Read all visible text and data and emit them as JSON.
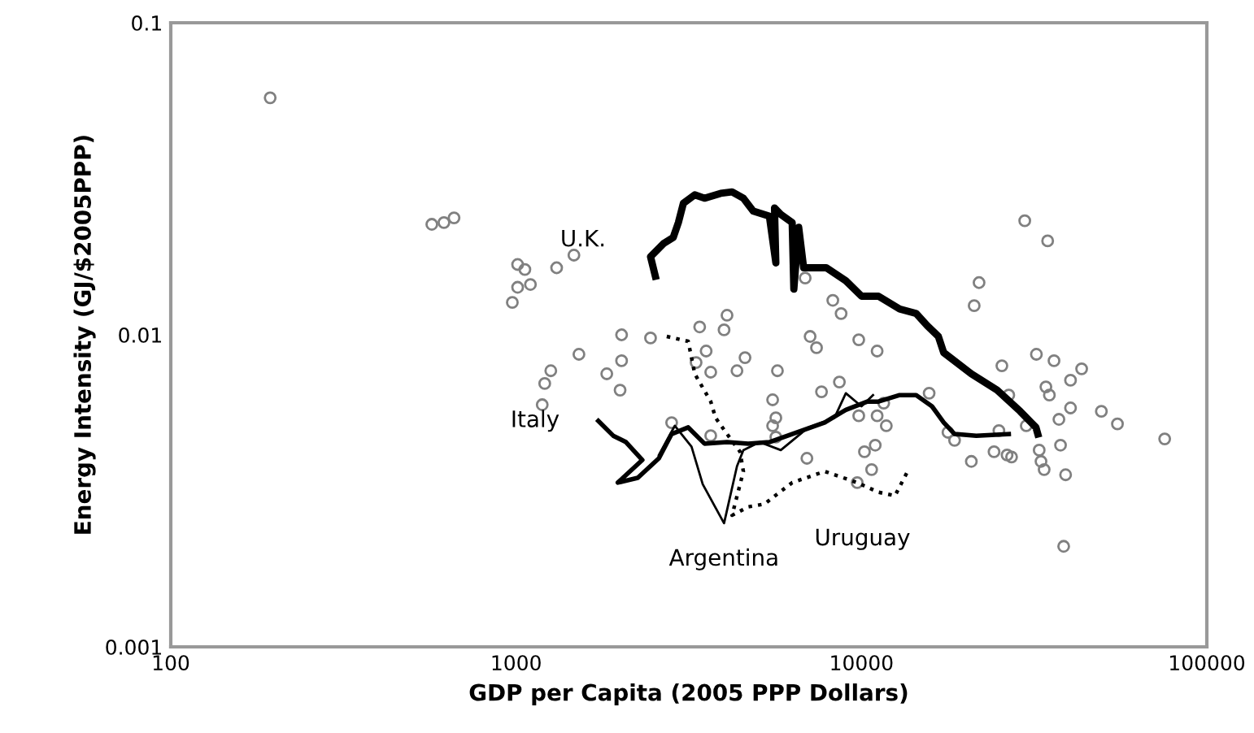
{
  "chart_data": {
    "type": "scatter",
    "xlabel": "GDP per Capita (2005 PPP Dollars)",
    "ylabel": "Energy Intensity (GJ/$2005PPP)",
    "log": "xy",
    "xlim": [
      100,
      100000
    ],
    "xticks": [
      100,
      1000,
      10000,
      100000
    ],
    "ylim": [
      0.001,
      0.1
    ],
    "yticks": [
      0.001,
      0.01,
      0.1
    ],
    "grid": false,
    "legend": false,
    "series": [
      {
        "marker": "circle",
        "color": "#808080",
        "x": [
          194,
          570,
          618,
          661,
          1010,
          1060,
          1310,
          1470,
          1010,
          1100,
          975,
          2020,
          2450,
          1520,
          2020,
          1260,
          1830,
          1210,
          2000,
          1190,
          4080,
          4000,
          3400,
          3550,
          3320,
          4600,
          4360,
          5710,
          3660,
          7100,
          7410,
          9820,
          11100,
          8260,
          8730,
          21200,
          8630,
          7660,
          5530,
          5530,
          5650,
          2820,
          3660,
          5650,
          11800,
          11100,
          15700,
          10200,
          10960,
          6950,
          10700,
          9720,
          20800,
          18600,
          17800,
          29700,
          34600,
          21900,
          6870,
          25500,
          32100,
          36100,
          43400,
          40300,
          34200,
          35000,
          40300,
          37300,
          49500,
          55100,
          75500,
          26700,
          30000,
          25000,
          24200,
          26400,
          27200,
          32700,
          33100,
          33800,
          37700,
          39000,
          11600,
          9820,
          38500
        ],
        "values": [
          0.0575,
          0.0226,
          0.0229,
          0.0237,
          0.0168,
          0.0162,
          0.0164,
          0.018,
          0.0142,
          0.0145,
          0.0127,
          0.01,
          0.00977,
          0.00866,
          0.00826,
          0.00767,
          0.0075,
          0.00698,
          0.00665,
          0.00597,
          0.01155,
          0.01037,
          0.0106,
          0.00887,
          0.00815,
          0.00845,
          0.00767,
          0.00767,
          0.00759,
          0.00988,
          0.00909,
          0.00964,
          0.00887,
          0.0129,
          0.0117,
          0.0124,
          0.00706,
          0.00657,
          0.00619,
          0.00511,
          0.00542,
          0.00523,
          0.00475,
          0.0047,
          0.00511,
          0.0055,
          0.0065,
          0.00422,
          0.00443,
          0.00402,
          0.0037,
          0.00336,
          0.00393,
          0.00459,
          0.00487,
          0.0232,
          0.02,
          0.0147,
          0.0152,
          0.00796,
          0.00866,
          0.00826,
          0.00778,
          0.00715,
          0.00681,
          0.00641,
          0.00583,
          0.00536,
          0.00569,
          0.00518,
          0.00464,
          0.00641,
          0.00511,
          0.00493,
          0.00422,
          0.00412,
          0.00406,
          0.00427,
          0.00393,
          0.0037,
          0.00443,
          0.00356,
          0.00604,
          0.0055,
          0.0021
        ]
      },
      {
        "type": "line",
        "name": "U.K.",
        "color": "#000000",
        "line_style": "solid",
        "marker": "none",
        "x": [
          2530,
          2450,
          2670,
          2850,
          2950,
          3050,
          3290,
          3510,
          3910,
          4220,
          4550,
          4860,
          5410,
          5650,
          5600,
          5840,
          6300,
          6370,
          6580,
          6800,
          7910,
          9010,
          10000,
          11200,
          12900,
          14400,
          15500,
          16700,
          17300,
          20800,
          24700,
          28800,
          32000,
          32400
        ],
        "values": [
          0.0154,
          0.0178,
          0.0196,
          0.0205,
          0.0229,
          0.0264,
          0.0281,
          0.0274,
          0.0284,
          0.0287,
          0.0274,
          0.0249,
          0.024,
          0.017,
          0.0255,
          0.0243,
          0.0229,
          0.014,
          0.0221,
          0.0164,
          0.0164,
          0.0149,
          0.0133,
          0.0133,
          0.0121,
          0.0117,
          0.0107,
          0.00988,
          0.00877,
          0.0075,
          0.00665,
          0.00569,
          0.00505,
          0.00481
        ]
      },
      {
        "type": "line",
        "name": "Italy",
        "color": "#000000",
        "line_style": "solid",
        "marker": "none",
        "x": [
          1730,
          1910,
          2080,
          2320,
          1970,
          2250,
          2590,
          2820,
          3150,
          3510,
          4080,
          4700,
          5410,
          6300,
          7830,
          9010,
          10400,
          11200,
          12900,
          14400,
          16000,
          17300,
          18600,
          21500,
          26700
        ],
        "values": [
          0.0053,
          0.00475,
          0.00453,
          0.00397,
          0.00336,
          0.00348,
          0.00402,
          0.00481,
          0.00505,
          0.00448,
          0.00453,
          0.00448,
          0.00453,
          0.00481,
          0.00524,
          0.00575,
          0.00611,
          0.00611,
          0.00641,
          0.00641,
          0.0059,
          0.00524,
          0.00481,
          0.00475,
          0.00481
        ]
      },
      {
        "type": "line",
        "name": "Argentina",
        "color": "#000000",
        "line_style": "solid",
        "marker": "none",
        "x": [
          2590,
          2880,
          3220,
          3470,
          4000,
          4360,
          4550,
          5070,
          5840,
          7020,
          8350,
          9010,
          10000,
          10800
        ],
        "values": [
          0.00412,
          0.00511,
          0.00438,
          0.00332,
          0.00249,
          0.00379,
          0.00427,
          0.00453,
          0.00427,
          0.00505,
          0.00542,
          0.0065,
          0.0059,
          0.00641
        ]
      },
      {
        "type": "line",
        "name": "Uruguay",
        "color": "#000000",
        "line_style": "dotted",
        "marker": "none",
        "x": [
          2730,
          3150,
          3290,
          3660,
          3780,
          4080,
          4450,
          4550,
          4220,
          4700,
          5240,
          6300,
          7830,
          9720,
          11200,
          12500,
          13600
        ],
        "values": [
          0.00988,
          0.00953,
          0.0075,
          0.00611,
          0.00542,
          0.00481,
          0.00422,
          0.00365,
          0.00264,
          0.00281,
          0.00287,
          0.00336,
          0.00365,
          0.00336,
          0.00313,
          0.00305,
          0.00365
        ]
      }
    ]
  }
}
